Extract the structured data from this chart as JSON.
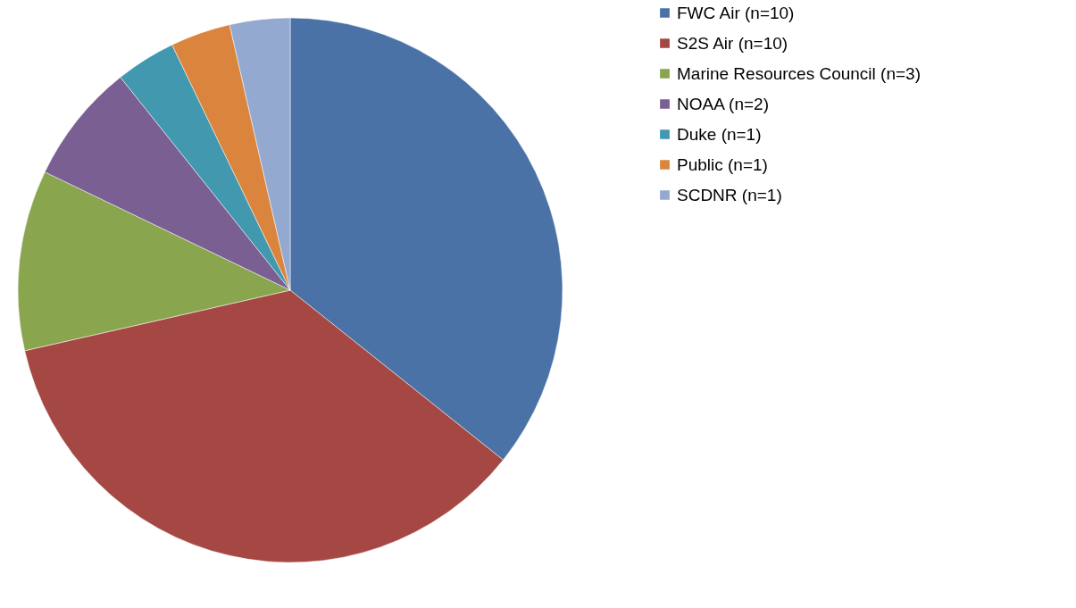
{
  "chart_data": {
    "type": "pie",
    "categories": [
      "FWC Air (n=10)",
      "S2S Air (n=10)",
      "Marine Resources Council (n=3)",
      "NOAA (n=2)",
      "Duke (n=1)",
      "Public (n=1)",
      "SCDNR (n=1)"
    ],
    "values": [
      10,
      10,
      3,
      2,
      1,
      1,
      1
    ],
    "colors": [
      "#4a72a6",
      "#a54743",
      "#89a54e",
      "#7a5f93",
      "#4198af",
      "#db843d",
      "#93a9cf"
    ],
    "legend": "right"
  }
}
